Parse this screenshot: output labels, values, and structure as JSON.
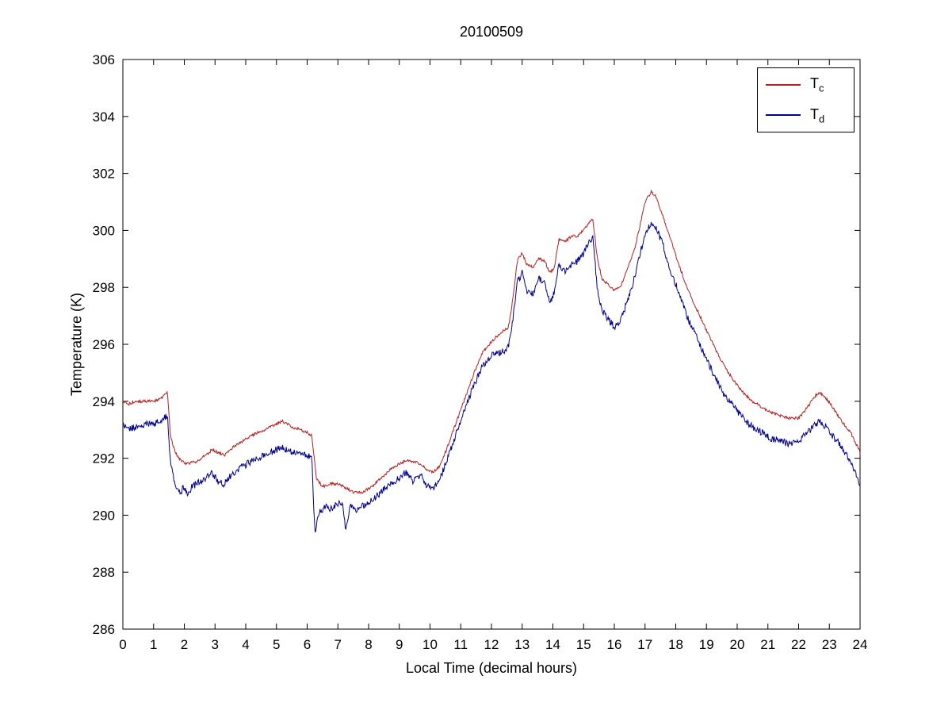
{
  "chart_data": {
    "type": "line",
    "title": "20100509",
    "xlabel": "Local Time (decimal hours)",
    "ylabel": "Temperature (K)",
    "xlim": [
      0,
      24
    ],
    "ylim": [
      286,
      306
    ],
    "xticks": [
      0,
      1,
      2,
      3,
      4,
      5,
      6,
      7,
      8,
      9,
      10,
      11,
      12,
      13,
      14,
      15,
      16,
      17,
      18,
      19,
      20,
      21,
      22,
      23,
      24
    ],
    "yticks": [
      286,
      288,
      290,
      292,
      294,
      296,
      298,
      300,
      302,
      304,
      306
    ],
    "grid": false,
    "legend_position": "northeast",
    "axis_color": "#000000",
    "background_color": "#ffffff",
    "series": [
      {
        "name": "Tc",
        "legend_main": "T",
        "legend_sub": "c",
        "color": "#b22222",
        "noise": 0.05,
        "points": [
          [
            0,
            294.0
          ],
          [
            0.2,
            293.9
          ],
          [
            0.4,
            294.0
          ],
          [
            0.7,
            294.0
          ],
          [
            1.0,
            294.0
          ],
          [
            1.2,
            294.1
          ],
          [
            1.35,
            294.2
          ],
          [
            1.45,
            294.3
          ],
          [
            1.55,
            292.8
          ],
          [
            1.7,
            292.2
          ],
          [
            1.9,
            291.9
          ],
          [
            2.1,
            291.8
          ],
          [
            2.4,
            291.9
          ],
          [
            2.7,
            292.1
          ],
          [
            2.9,
            292.3
          ],
          [
            3.1,
            292.2
          ],
          [
            3.3,
            292.1
          ],
          [
            3.6,
            292.4
          ],
          [
            3.9,
            292.6
          ],
          [
            4.2,
            292.8
          ],
          [
            4.6,
            293.0
          ],
          [
            5.0,
            293.2
          ],
          [
            5.2,
            293.3
          ],
          [
            5.5,
            293.1
          ],
          [
            5.8,
            293.0
          ],
          [
            6.0,
            292.9
          ],
          [
            6.15,
            292.8
          ],
          [
            6.3,
            291.3
          ],
          [
            6.5,
            291.0
          ],
          [
            6.7,
            291.1
          ],
          [
            7.0,
            291.1
          ],
          [
            7.2,
            291.0
          ],
          [
            7.5,
            290.8
          ],
          [
            7.8,
            290.8
          ],
          [
            8.1,
            291.0
          ],
          [
            8.4,
            291.3
          ],
          [
            8.7,
            291.6
          ],
          [
            9.0,
            291.8
          ],
          [
            9.2,
            291.9
          ],
          [
            9.45,
            291.9
          ],
          [
            9.7,
            291.8
          ],
          [
            9.9,
            291.6
          ],
          [
            10.1,
            291.5
          ],
          [
            10.3,
            291.7
          ],
          [
            10.5,
            292.2
          ],
          [
            10.8,
            293.1
          ],
          [
            11.1,
            294.0
          ],
          [
            11.4,
            294.9
          ],
          [
            11.7,
            295.7
          ],
          [
            12.0,
            296.1
          ],
          [
            12.3,
            296.4
          ],
          [
            12.55,
            296.6
          ],
          [
            12.7,
            297.6
          ],
          [
            12.85,
            299.0
          ],
          [
            13.0,
            299.2
          ],
          [
            13.15,
            298.8
          ],
          [
            13.35,
            298.7
          ],
          [
            13.55,
            299.0
          ],
          [
            13.75,
            298.9
          ],
          [
            13.9,
            298.5
          ],
          [
            14.05,
            298.7
          ],
          [
            14.2,
            299.7
          ],
          [
            14.4,
            299.6
          ],
          [
            14.6,
            299.8
          ],
          [
            14.8,
            299.8
          ],
          [
            15.0,
            300.0
          ],
          [
            15.2,
            300.3
          ],
          [
            15.3,
            300.4
          ],
          [
            15.45,
            299.0
          ],
          [
            15.6,
            298.3
          ],
          [
            15.8,
            298.1
          ],
          [
            16.0,
            297.9
          ],
          [
            16.2,
            298.0
          ],
          [
            16.45,
            298.7
          ],
          [
            16.7,
            299.5
          ],
          [
            17.0,
            301.0
          ],
          [
            17.2,
            301.35
          ],
          [
            17.35,
            301.2
          ],
          [
            17.55,
            300.6
          ],
          [
            17.8,
            299.8
          ],
          [
            18.1,
            298.8
          ],
          [
            18.4,
            297.9
          ],
          [
            18.7,
            297.2
          ],
          [
            19.0,
            296.5
          ],
          [
            19.3,
            295.8
          ],
          [
            19.6,
            295.2
          ],
          [
            19.9,
            294.7
          ],
          [
            20.2,
            294.3
          ],
          [
            20.5,
            294.0
          ],
          [
            20.8,
            293.8
          ],
          [
            21.1,
            293.6
          ],
          [
            21.4,
            293.5
          ],
          [
            21.7,
            293.4
          ],
          [
            22.0,
            293.4
          ],
          [
            22.3,
            293.8
          ],
          [
            22.55,
            294.2
          ],
          [
            22.7,
            294.3
          ],
          [
            22.9,
            294.1
          ],
          [
            23.1,
            293.8
          ],
          [
            23.4,
            293.3
          ],
          [
            23.7,
            292.9
          ],
          [
            24.0,
            292.2
          ]
        ]
      },
      {
        "name": "Td",
        "legend_main": "T",
        "legend_sub": "d",
        "color": "#00008b",
        "noise": 0.12,
        "points": [
          [
            0,
            293.2
          ],
          [
            0.2,
            293.0
          ],
          [
            0.4,
            293.1
          ],
          [
            0.7,
            293.2
          ],
          [
            1.0,
            293.2
          ],
          [
            1.2,
            293.3
          ],
          [
            1.35,
            293.4
          ],
          [
            1.45,
            293.5
          ],
          [
            1.55,
            291.8
          ],
          [
            1.7,
            291.1
          ],
          [
            1.85,
            290.8
          ],
          [
            2.0,
            291.0
          ],
          [
            2.1,
            290.65
          ],
          [
            2.25,
            291.0
          ],
          [
            2.4,
            291.1
          ],
          [
            2.7,
            291.3
          ],
          [
            2.9,
            291.5
          ],
          [
            3.1,
            291.2
          ],
          [
            3.3,
            291.1
          ],
          [
            3.6,
            291.5
          ],
          [
            3.9,
            291.7
          ],
          [
            4.2,
            291.9
          ],
          [
            4.6,
            292.1
          ],
          [
            5.0,
            292.3
          ],
          [
            5.2,
            292.35
          ],
          [
            5.5,
            292.2
          ],
          [
            5.8,
            292.2
          ],
          [
            6.0,
            292.1
          ],
          [
            6.15,
            292.0
          ],
          [
            6.25,
            289.4
          ],
          [
            6.4,
            290.1
          ],
          [
            6.6,
            290.3
          ],
          [
            6.8,
            290.2
          ],
          [
            7.0,
            290.4
          ],
          [
            7.15,
            290.45
          ],
          [
            7.25,
            289.5
          ],
          [
            7.4,
            290.3
          ],
          [
            7.6,
            290.2
          ],
          [
            7.9,
            290.4
          ],
          [
            8.1,
            290.5
          ],
          [
            8.4,
            290.8
          ],
          [
            8.7,
            291.1
          ],
          [
            9.0,
            291.3
          ],
          [
            9.2,
            291.5
          ],
          [
            9.45,
            291.2
          ],
          [
            9.7,
            291.4
          ],
          [
            9.9,
            291.0
          ],
          [
            10.1,
            290.9
          ],
          [
            10.3,
            291.2
          ],
          [
            10.5,
            291.8
          ],
          [
            10.8,
            292.7
          ],
          [
            11.1,
            293.6
          ],
          [
            11.4,
            294.5
          ],
          [
            11.7,
            295.2
          ],
          [
            12.0,
            295.6
          ],
          [
            12.3,
            295.7
          ],
          [
            12.55,
            295.9
          ],
          [
            12.7,
            296.9
          ],
          [
            12.85,
            298.2
          ],
          [
            13.0,
            298.5
          ],
          [
            13.15,
            297.9
          ],
          [
            13.35,
            297.8
          ],
          [
            13.55,
            298.3
          ],
          [
            13.75,
            298.1
          ],
          [
            13.9,
            297.5
          ],
          [
            14.05,
            297.8
          ],
          [
            14.2,
            298.8
          ],
          [
            14.4,
            298.6
          ],
          [
            14.6,
            298.8
          ],
          [
            14.8,
            298.9
          ],
          [
            15.0,
            299.2
          ],
          [
            15.2,
            299.6
          ],
          [
            15.3,
            299.8
          ],
          [
            15.45,
            297.9
          ],
          [
            15.6,
            297.2
          ],
          [
            15.8,
            296.9
          ],
          [
            16.0,
            296.6
          ],
          [
            16.2,
            296.8
          ],
          [
            16.45,
            297.6
          ],
          [
            16.7,
            298.5
          ],
          [
            17.0,
            299.9
          ],
          [
            17.2,
            300.25
          ],
          [
            17.35,
            300.1
          ],
          [
            17.55,
            299.6
          ],
          [
            17.8,
            298.7
          ],
          [
            18.1,
            297.8
          ],
          [
            18.4,
            296.9
          ],
          [
            18.7,
            296.2
          ],
          [
            19.0,
            295.5
          ],
          [
            19.3,
            294.8
          ],
          [
            19.6,
            294.2
          ],
          [
            19.9,
            293.8
          ],
          [
            20.2,
            293.4
          ],
          [
            20.5,
            293.1
          ],
          [
            20.8,
            292.9
          ],
          [
            21.1,
            292.7
          ],
          [
            21.4,
            292.6
          ],
          [
            21.7,
            292.5
          ],
          [
            22.0,
            292.6
          ],
          [
            22.3,
            292.9
          ],
          [
            22.55,
            293.2
          ],
          [
            22.7,
            293.3
          ],
          [
            22.9,
            293.1
          ],
          [
            23.1,
            292.8
          ],
          [
            23.4,
            292.4
          ],
          [
            23.7,
            291.9
          ],
          [
            24.0,
            291.1
          ]
        ]
      }
    ]
  }
}
